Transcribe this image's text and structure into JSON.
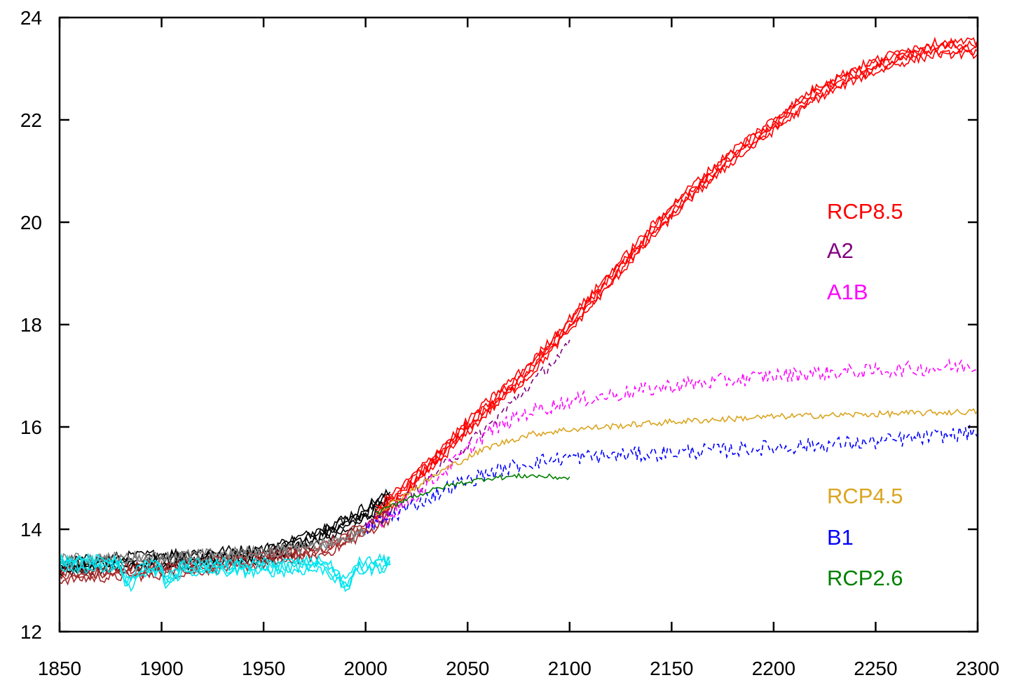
{
  "chart_data": {
    "type": "line",
    "title": "",
    "xlabel": "",
    "ylabel": "",
    "xlim": [
      1850,
      2300
    ],
    "ylim": [
      12,
      24
    ],
    "xticks": [
      1850,
      1900,
      1950,
      2000,
      2050,
      2100,
      2150,
      2200,
      2250,
      2300
    ],
    "yticks": [
      12,
      14,
      16,
      18,
      20,
      22,
      24
    ],
    "grid": false,
    "legend": [
      {
        "label": "RCP8.5",
        "color": "#ff0000"
      },
      {
        "label": "A2",
        "color": "#800080"
      },
      {
        "label": "A1B",
        "color": "#ff00ff"
      },
      {
        "label": "RCP4.5",
        "color": "#daa520"
      },
      {
        "label": "B1",
        "color": "#0000ff"
      },
      {
        "label": "RCP2.6",
        "color": "#008000"
      }
    ],
    "series": [
      {
        "name": "RCP8.5",
        "color": "#ff0000",
        "dashed": false,
        "ensemble": 5,
        "noise": 0.08,
        "x": [
          2005,
          2020,
          2040,
          2060,
          2080,
          2100,
          2120,
          2140,
          2160,
          2180,
          2200,
          2220,
          2240,
          2260,
          2280,
          2300
        ],
        "y": [
          14.3,
          14.8,
          15.6,
          16.4,
          17.1,
          18.0,
          18.9,
          19.8,
          20.6,
          21.3,
          21.9,
          22.5,
          22.9,
          23.2,
          23.4,
          23.4
        ]
      },
      {
        "name": "A2",
        "color": "#800080",
        "dashed": true,
        "ensemble": 1,
        "noise": 0.12,
        "x": [
          2000,
          2020,
          2040,
          2060,
          2080,
          2100
        ],
        "y": [
          14.1,
          14.6,
          15.3,
          16.0,
          16.8,
          17.6
        ]
      },
      {
        "name": "A1B",
        "color": "#ff00ff",
        "dashed": true,
        "ensemble": 1,
        "noise": 0.15,
        "x": [
          2000,
          2020,
          2040,
          2060,
          2080,
          2100,
          2150,
          2200,
          2250,
          2300
        ],
        "y": [
          14.0,
          14.5,
          15.2,
          15.9,
          16.3,
          16.5,
          16.8,
          17.0,
          17.1,
          17.2
        ]
      },
      {
        "name": "RCP4.5",
        "color": "#daa520",
        "dashed": false,
        "ensemble": 1,
        "noise": 0.06,
        "x": [
          2005,
          2020,
          2040,
          2060,
          2080,
          2100,
          2150,
          2200,
          2250,
          2300
        ],
        "y": [
          14.3,
          14.7,
          15.2,
          15.6,
          15.85,
          15.95,
          16.1,
          16.2,
          16.25,
          16.3
        ]
      },
      {
        "name": "B1",
        "color": "#0000ff",
        "dashed": true,
        "ensemble": 1,
        "noise": 0.15,
        "x": [
          2000,
          2020,
          2040,
          2060,
          2080,
          2100,
          2150,
          2200,
          2250,
          2300
        ],
        "y": [
          14.0,
          14.4,
          14.8,
          15.1,
          15.3,
          15.4,
          15.5,
          15.6,
          15.7,
          15.9
        ]
      },
      {
        "name": "RCP2.6",
        "color": "#008000",
        "dashed": false,
        "ensemble": 1,
        "noise": 0.05,
        "x": [
          2005,
          2020,
          2040,
          2060,
          2080,
          2100
        ],
        "y": [
          14.3,
          14.6,
          14.85,
          15.0,
          15.05,
          15.0
        ]
      },
      {
        "name": "",
        "color": "#000000",
        "dashed": false,
        "ensemble": 5,
        "noise": 0.1,
        "x": [
          1850,
          1900,
          1950,
          1970,
          1990,
          2012
        ],
        "y": [
          13.25,
          13.4,
          13.5,
          13.75,
          14.1,
          14.6
        ]
      },
      {
        "name": "",
        "color": "#a52a2a",
        "dashed": false,
        "ensemble": 4,
        "noise": 0.1,
        "x": [
          1850,
          1900,
          1950,
          1980,
          2000,
          2012
        ],
        "y": [
          13.1,
          13.2,
          13.4,
          13.6,
          14.0,
          14.3
        ]
      },
      {
        "name": "",
        "color": "#808080",
        "dashed": false,
        "ensemble": 2,
        "noise": 0.1,
        "x": [
          1850,
          1900,
          1950,
          1980,
          2000
        ],
        "y": [
          13.4,
          13.45,
          13.55,
          13.7,
          13.95
        ]
      },
      {
        "name": "",
        "color": "#00e5ee",
        "dashed": false,
        "ensemble": 4,
        "noise": 0.1,
        "x": [
          1850,
          1880,
          1883,
          1890,
          1900,
          1902,
          1910,
          1950,
          1980,
          1991,
          1995,
          2012
        ],
        "y": [
          13.35,
          13.3,
          12.9,
          13.2,
          13.25,
          12.95,
          13.25,
          13.25,
          13.3,
          12.9,
          13.25,
          13.35
        ]
      }
    ]
  }
}
